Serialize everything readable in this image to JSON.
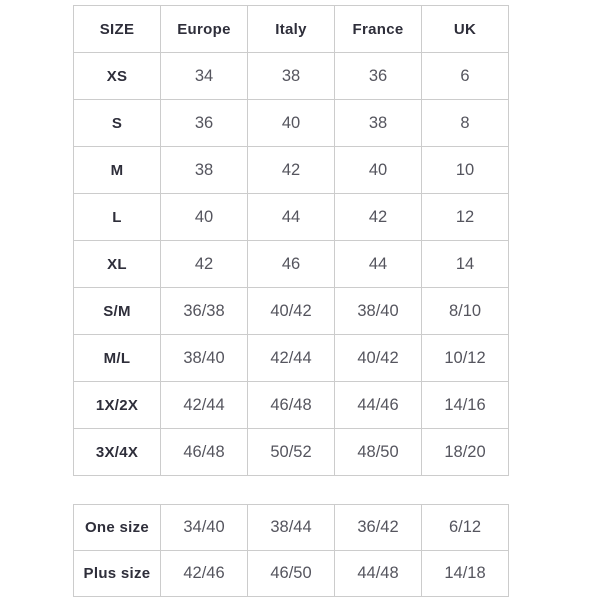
{
  "colors": {
    "background": "#ffffff",
    "border": "#cccccc",
    "header_text": "#2e2e3a",
    "value_text": "#55555e"
  },
  "size_table": {
    "headers": [
      "SIZE",
      "Europe",
      "Italy",
      "France",
      "UK"
    ],
    "rows": [
      {
        "label": "XS",
        "values": [
          "34",
          "38",
          "36",
          "6"
        ]
      },
      {
        "label": "S",
        "values": [
          "36",
          "40",
          "38",
          "8"
        ]
      },
      {
        "label": "M",
        "values": [
          "38",
          "42",
          "40",
          "10"
        ]
      },
      {
        "label": "L",
        "values": [
          "40",
          "44",
          "42",
          "12"
        ]
      },
      {
        "label": "XL",
        "values": [
          "42",
          "46",
          "44",
          "14"
        ]
      },
      {
        "label": "S/M",
        "values": [
          "36/38",
          "40/42",
          "38/40",
          "8/10"
        ]
      },
      {
        "label": "M/L",
        "values": [
          "38/40",
          "42/44",
          "40/42",
          "10/12"
        ]
      },
      {
        "label": "1X/2X",
        "values": [
          "42/44",
          "46/48",
          "44/46",
          "14/16"
        ]
      },
      {
        "label": "3X/4X",
        "values": [
          "46/48",
          "50/52",
          "48/50",
          "18/20"
        ]
      }
    ]
  },
  "onesize_table": {
    "rows": [
      {
        "label": "One size",
        "values": [
          "34/40",
          "38/44",
          "36/42",
          "6/12"
        ]
      },
      {
        "label": "Plus size",
        "values": [
          "42/46",
          "46/50",
          "44/48",
          "14/18"
        ]
      }
    ]
  }
}
